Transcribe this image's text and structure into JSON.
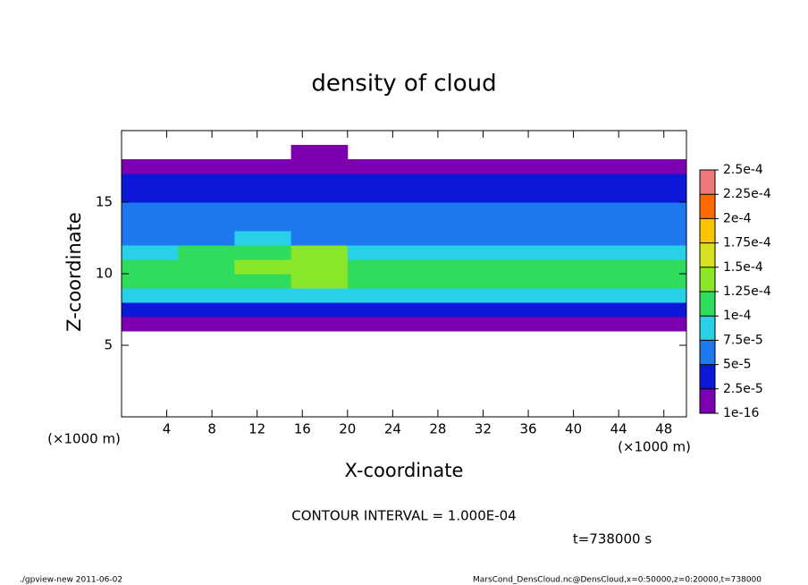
{
  "chart_data": {
    "type": "heatmap",
    "title": "density of cloud",
    "x_label": "X-coordinate",
    "y_label": "Z-coordinate",
    "x_unit": "(×1000 m)",
    "y_unit": "(×1000 m)",
    "contour_note": "CONTOUR INTERVAL = 1.000E-04",
    "time_note": "t=738000 s",
    "footer_left": "./gpview-new  2011-06-02",
    "footer_right": "MarsCond_DensCloud.nc@DensCloud,x=0:50000,z=0:20000,t=738000",
    "xlim": [
      0,
      50
    ],
    "ylim": [
      0,
      20
    ],
    "xticks": [
      4,
      8,
      12,
      16,
      20,
      24,
      28,
      32,
      36,
      40,
      44,
      48
    ],
    "yticks": [
      5,
      10,
      15
    ],
    "x": [
      2.5,
      7.5,
      12.5,
      17.5,
      22.5,
      27.5,
      32.5,
      37.5,
      42.5,
      47.5
    ],
    "z": [
      0.5,
      1.5,
      2.5,
      3.5,
      4.5,
      5.5,
      6.5,
      7.5,
      8.5,
      9.5,
      10.5,
      11.5,
      12.5,
      13.5,
      14.5,
      15.5,
      16.5,
      17.5,
      18.5,
      19.5
    ],
    "cell_width": 5,
    "cell_height": 1,
    "values": [
      [
        null,
        null,
        null,
        null,
        null,
        null,
        null,
        null,
        null,
        null
      ],
      [
        null,
        null,
        null,
        null,
        null,
        null,
        null,
        null,
        null,
        null
      ],
      [
        null,
        null,
        null,
        null,
        null,
        null,
        null,
        null,
        null,
        null
      ],
      [
        null,
        null,
        null,
        null,
        null,
        null,
        null,
        null,
        null,
        null
      ],
      [
        null,
        null,
        null,
        null,
        null,
        null,
        null,
        null,
        null,
        null
      ],
      [
        null,
        null,
        null,
        null,
        null,
        null,
        null,
        null,
        null,
        null
      ],
      [
        1e-05,
        1e-05,
        1e-05,
        1e-05,
        1e-05,
        1e-05,
        1e-05,
        1e-05,
        1e-05,
        1e-05
      ],
      [
        3e-05,
        3e-05,
        2.5e-05,
        2.5e-05,
        3e-05,
        3e-05,
        3e-05,
        3e-05,
        3e-05,
        3e-05
      ],
      [
        8e-05,
        8.5e-05,
        9e-05,
        9e-05,
        8.5e-05,
        8e-05,
        8e-05,
        8e-05,
        8e-05,
        8e-05
      ],
      [
        0.000105,
        0.000115,
        0.00012,
        0.000125,
        0.00011,
        0.0001,
        0.0001,
        0.0001,
        0.0001,
        0.000105
      ],
      [
        0.000105,
        0.00012,
        0.00013,
        0.00014,
        0.000115,
        0.000105,
        0.0001,
        0.0001,
        0.0001,
        0.0001
      ],
      [
        9e-05,
        0.00011,
        0.00012,
        0.00013,
        9e-05,
        8e-05,
        8e-05,
        8.5e-05,
        8.5e-05,
        9e-05
      ],
      [
        7e-05,
        7e-05,
        7.5e-05,
        7e-05,
        6.5e-05,
        6.5e-05,
        6.5e-05,
        6.5e-05,
        6.5e-05,
        6.5e-05
      ],
      [
        6e-05,
        6e-05,
        6e-05,
        6e-05,
        6e-05,
        6e-05,
        6e-05,
        6e-05,
        6e-05,
        6e-05
      ],
      [
        5.5e-05,
        5.5e-05,
        5.5e-05,
        5.5e-05,
        5.5e-05,
        5.5e-05,
        5.5e-05,
        5.5e-05,
        5.5e-05,
        5.5e-05
      ],
      [
        4.5e-05,
        4.5e-05,
        4.5e-05,
        4.5e-05,
        4.5e-05,
        4.5e-05,
        4.5e-05,
        4.5e-05,
        4.5e-05,
        4.5e-05
      ],
      [
        3e-05,
        3e-05,
        3e-05,
        3e-05,
        3e-05,
        3e-05,
        3e-05,
        3e-05,
        3e-05,
        3e-05
      ],
      [
        1e-05,
        1e-05,
        1e-05,
        1e-05,
        1e-05,
        1e-05,
        1e-05,
        1e-05,
        1e-05,
        1e-05
      ],
      [
        null,
        null,
        null,
        5e-06,
        null,
        null,
        null,
        null,
        null,
        null
      ],
      [
        null,
        null,
        null,
        null,
        null,
        null,
        null,
        null,
        null,
        null
      ]
    ],
    "colorbar": {
      "ticks": [
        {
          "value": 1e-16,
          "label": "1e-16"
        },
        {
          "value": 2.5e-05,
          "label": "2.5e-5"
        },
        {
          "value": 5e-05,
          "label": "5e-5"
        },
        {
          "value": 7.5e-05,
          "label": "7.5e-5"
        },
        {
          "value": 0.0001,
          "label": "1e-4"
        },
        {
          "value": 0.000125,
          "label": "1.25e-4"
        },
        {
          "value": 0.00015,
          "label": "1.5e-4"
        },
        {
          "value": 0.000175,
          "label": "1.75e-4"
        },
        {
          "value": 0.0002,
          "label": "2e-4"
        },
        {
          "value": 0.000225,
          "label": "2.25e-4"
        },
        {
          "value": 0.00025,
          "label": "2.5e-4"
        }
      ],
      "colors": [
        "#7d00b0",
        "#0c18d8",
        "#1e78f0",
        "#28d0e8",
        "#30dc5c",
        "#8ae628",
        "#d8e020",
        "#f8c400",
        "#ff6a00",
        "#f07878"
      ]
    }
  }
}
